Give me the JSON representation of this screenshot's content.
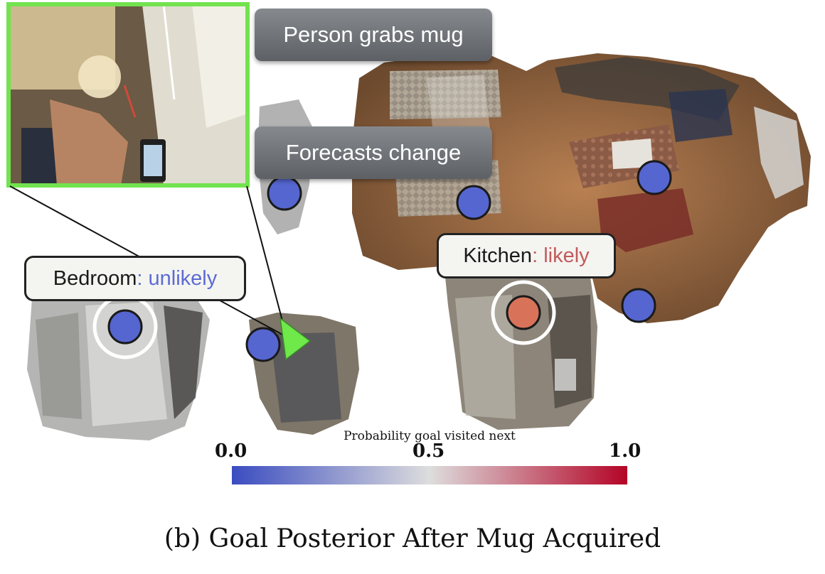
{
  "callouts": {
    "event": "Person grabs mug",
    "effect": "Forecasts change"
  },
  "room_labels": {
    "bedroom": {
      "name": "Bedroom",
      "sep": ": ",
      "status": "unlikely",
      "status_color": "#5d6bd3"
    },
    "kitchen": {
      "name": "Kitchen",
      "sep": ": ",
      "status": "likely",
      "status_color": "#c25a5a"
    }
  },
  "colorbar": {
    "title": "Probability goal visited next",
    "tick_min": "0.0",
    "tick_mid": "0.5",
    "tick_max": "1.0",
    "colors": [
      "#3b4cc0",
      "#dddddd",
      "#b40426"
    ]
  },
  "goal_markers": [
    {
      "id": "goal-1",
      "probability": 0.1,
      "highlighted": false
    },
    {
      "id": "goal-2",
      "probability": 0.1,
      "highlighted": false
    },
    {
      "id": "goal-3",
      "probability": 0.1,
      "highlighted": false
    },
    {
      "id": "goal-4",
      "probability": 0.1,
      "highlighted": false
    },
    {
      "id": "goal-bedroom",
      "probability": 0.1,
      "highlighted": true
    },
    {
      "id": "goal-5",
      "probability": 0.1,
      "highlighted": false
    },
    {
      "id": "goal-kitchen",
      "probability": 0.8,
      "highlighted": true
    }
  ],
  "colors": {
    "marker_blue": "#5566d0",
    "marker_red": "#d8735a",
    "person_marker": "#6fe84a",
    "inset_border": "#72e34f"
  },
  "caption": "(b) Goal Posterior After Mug Acquired"
}
